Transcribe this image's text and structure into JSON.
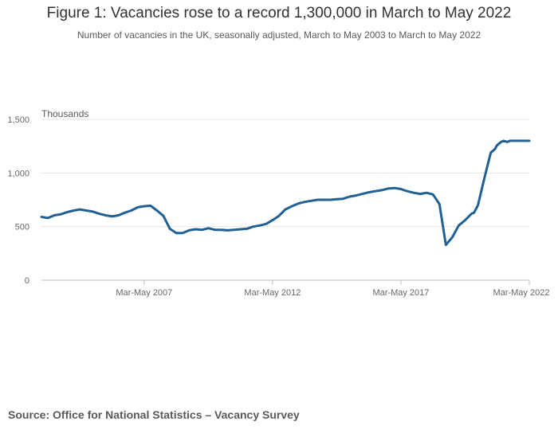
{
  "header": {
    "title": "Figure 1: Vacancies rose to a record 1,300,000 in March to May 2022",
    "subtitle": "Number of vacancies in the UK, seasonally adjusted, March to May 2003 to March to May 2022"
  },
  "footer": {
    "source": "Source: Office for National Statistics – Vacancy Survey"
  },
  "chart_data": {
    "type": "line",
    "title": "Figure 1: Vacancies rose to a record 1,300,000 in March to May 2022",
    "subtitle": "Number of vacancies in the UK, seasonally adjusted, March to May 2003 to March to May 2022",
    "ylabel": "Thousands",
    "xlabel": "",
    "ylim": [
      0,
      1500
    ],
    "xlim": [
      2003.25,
      2022.25
    ],
    "yticks": [
      0,
      500,
      1000,
      1500
    ],
    "ytick_labels": [
      "0",
      "500",
      "1,000",
      "1,500"
    ],
    "xticks": [
      2007.25,
      2012.25,
      2017.25,
      2022.25
    ],
    "xtick_labels": [
      "Mar-May 2007",
      "Mar-May 2012",
      "Mar-May 2017",
      "Mar-May 2022"
    ],
    "grid": "horizontal",
    "legend": "none",
    "line_color": "#206095",
    "series": [
      {
        "x": [
          2003.25,
          2003.5,
          2003.75,
          2004.0,
          2004.25,
          2004.5,
          2004.75,
          2005.0,
          2005.25,
          2005.5,
          2005.75,
          2006.0,
          2006.25,
          2006.5,
          2006.75,
          2007.0,
          2007.25,
          2007.5,
          2007.75,
          2008.0,
          2008.25,
          2008.5,
          2008.75,
          2009.0,
          2009.25,
          2009.5,
          2009.75,
          2010.0,
          2010.25,
          2010.5,
          2010.75,
          2011.0,
          2011.25,
          2011.5,
          2011.75,
          2012.0,
          2012.25,
          2012.5,
          2012.75,
          2013.0,
          2013.25,
          2013.5,
          2013.75,
          2014.0,
          2014.25,
          2014.5,
          2014.75,
          2015.0,
          2015.25,
          2015.5,
          2015.75,
          2016.0,
          2016.25,
          2016.5,
          2016.75,
          2017.0,
          2017.25,
          2017.5,
          2017.75,
          2018.0,
          2018.25,
          2018.5,
          2018.75,
          2019.0,
          2019.25,
          2019.5,
          2019.75,
          2020.0,
          2020.1,
          2020.25,
          2020.4,
          2020.5,
          2020.6,
          2020.75,
          2020.9,
          2021.0,
          2021.15,
          2021.25,
          2021.4,
          2021.5,
          2021.6,
          2021.75,
          2022.0,
          2022.25
        ],
        "y": [
          590,
          580,
          605,
          615,
          635,
          650,
          660,
          650,
          640,
          620,
          605,
          595,
          605,
          630,
          650,
          680,
          690,
          695,
          650,
          600,
          480,
          440,
          440,
          465,
          475,
          470,
          485,
          470,
          470,
          465,
          470,
          475,
          480,
          500,
          510,
          525,
          560,
          600,
          660,
          690,
          715,
          730,
          740,
          750,
          750,
          750,
          755,
          760,
          780,
          790,
          805,
          820,
          830,
          840,
          855,
          860,
          850,
          830,
          815,
          805,
          815,
          800,
          710,
          330,
          400,
          510,
          560,
          620,
          630,
          700,
          850,
          950,
          1050,
          1190,
          1220,
          1260,
          1290,
          1300,
          1290,
          1300,
          1300,
          1300,
          1300,
          1300
        ]
      }
    ]
  }
}
